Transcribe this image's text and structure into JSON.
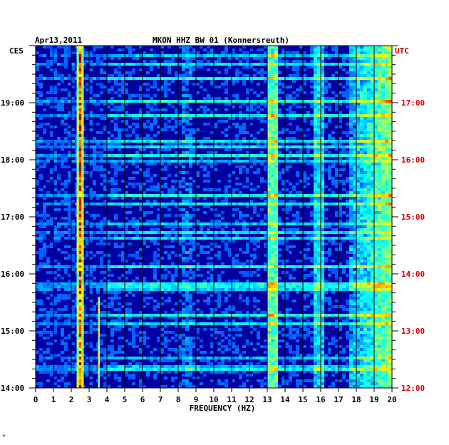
{
  "header": {
    "date": "Apr13,2011",
    "station": "MKON HHZ BW 01 (Konnersreuth)",
    "left_tz": "CES",
    "right_tz": "UTC"
  },
  "footnote": "*",
  "colors": {
    "left_axis": "#000000",
    "right_axis": "#cc0000",
    "background_field": "#0000a0",
    "grid": "#000000"
  },
  "chart_data": {
    "type": "heatmap",
    "title": "MKON HHZ BW 01 (Konnersreuth)",
    "xlabel": "FREQUENCY (HZ)",
    "xlim": [
      0,
      20
    ],
    "x_ticks": [
      "0",
      "1",
      "2",
      "3",
      "4",
      "5",
      "6",
      "7",
      "8",
      "9",
      "10",
      "11",
      "12",
      "13",
      "14",
      "15",
      "16",
      "17",
      "18",
      "19",
      "20"
    ],
    "y_left_ticks": [
      "19:00",
      "18:00",
      "17:00",
      "16:00",
      "15:00",
      "14:00"
    ],
    "y_right_ticks": [
      "17:00",
      "16:00",
      "15:00",
      "14:00",
      "13:00",
      "12:00"
    ],
    "y_left_range": [
      "14:00",
      "20:00"
    ],
    "y_right_range": [
      "12:00",
      "18:00"
    ],
    "grid": true,
    "colormap": "jet",
    "features": [
      {
        "freq_hz": 2.5,
        "description": "strong persistent line"
      },
      {
        "freq_hz": 3.55,
        "description": "weak line"
      },
      {
        "freq_hz": 13.4,
        "description": "persistent band"
      },
      {
        "freq_hz": 15.9,
        "description": "weak band"
      },
      {
        "freq_range_hz": [
          17.5,
          20
        ],
        "description": "broadband high-frequency energy"
      }
    ]
  }
}
